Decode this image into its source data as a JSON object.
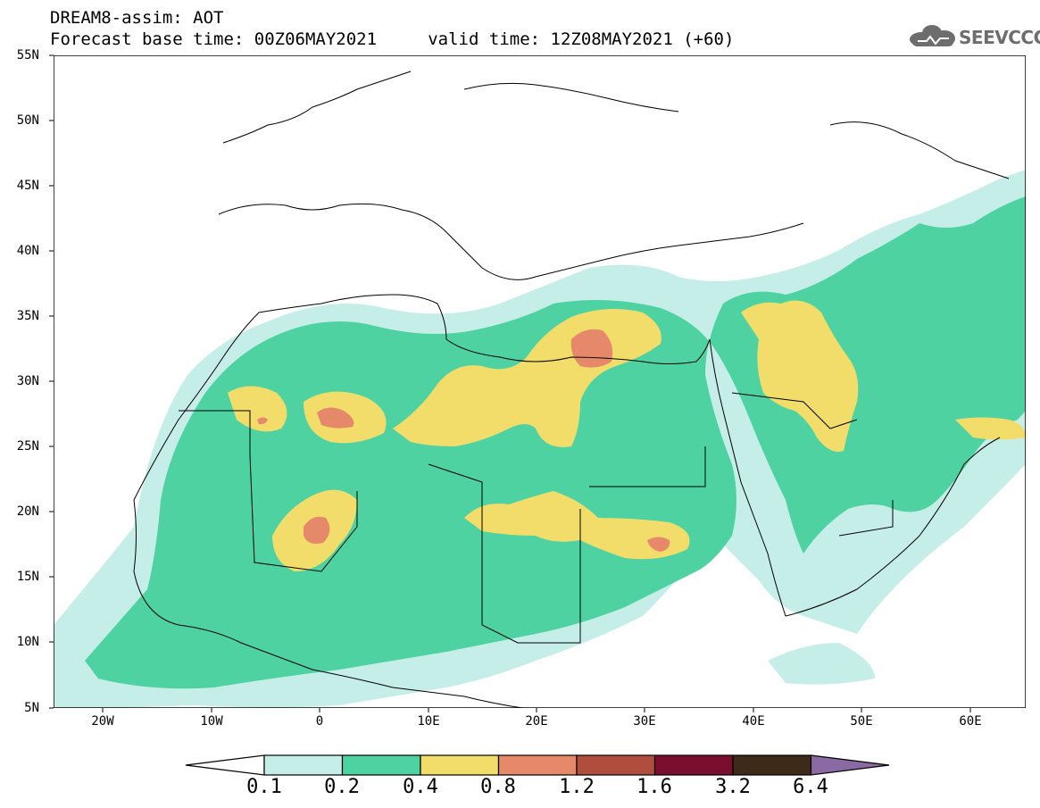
{
  "header": {
    "title_line1": "DREAM8-assim: AOT",
    "title_line2": "Forecast base time: 00Z06MAY2021     valid time: 12Z08MAY2021 (+60)",
    "logo_text": "SEEVCCC"
  },
  "map": {
    "lat_labels": [
      "55N",
      "50N",
      "45N",
      "40N",
      "35N",
      "30N",
      "25N",
      "20N",
      "15N",
      "10N",
      "5N"
    ],
    "lon_labels": [
      "20W",
      "10W",
      "0",
      "10E",
      "20E",
      "30E",
      "40E",
      "50E",
      "60E"
    ],
    "extent": {
      "lon_min": -25,
      "lon_max": 65,
      "lat_min": 5,
      "lat_max": 55
    }
  },
  "colorbar": {
    "labels": [
      "0.1",
      "0.2",
      "0.4",
      "0.8",
      "1.2",
      "1.6",
      "3.2",
      "6.4"
    ],
    "colors": [
      "#ffffff",
      "#c6eee8",
      "#4fd2a2",
      "#f2dd6b",
      "#e6896a",
      "#b04e3e",
      "#7a0e2e",
      "#3e2a19",
      "#8b6aa3"
    ]
  },
  "legend_colors": {
    "aot_0_1": "#c6eee8",
    "aot_0_2": "#4fd2a2",
    "aot_0_4": "#f2dd6b",
    "aot_0_8": "#e6896a",
    "aot_1_2": "#b04e3e"
  }
}
